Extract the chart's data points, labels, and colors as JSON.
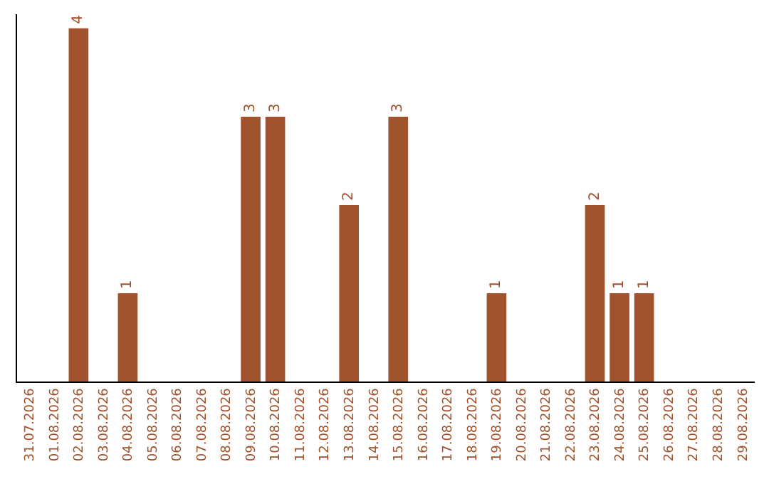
{
  "chart_data": {
    "type": "bar",
    "categories": [
      "31.07.2026",
      "01.08.2026",
      "02.08.2026",
      "03.08.2026",
      "04.08.2026",
      "05.08.2026",
      "06.08.2026",
      "07.08.2026",
      "08.08.2026",
      "09.08.2026",
      "10.08.2026",
      "11.08.2026",
      "12.08.2026",
      "13.08.2026",
      "14.08.2026",
      "15.08.2026",
      "16.08.2026",
      "17.08.2026",
      "18.08.2026",
      "19.08.2026",
      "20.08.2026",
      "21.08.2026",
      "22.08.2026",
      "23.08.2026",
      "24.08.2026",
      "25.08.2026",
      "26.08.2026",
      "27.08.2026",
      "28.08.2026",
      "29.08.2026"
    ],
    "values": [
      0,
      0,
      4,
      0,
      1,
      0,
      0,
      0,
      0,
      3,
      3,
      0,
      0,
      2,
      0,
      3,
      0,
      0,
      0,
      1,
      0,
      0,
      0,
      2,
      1,
      1,
      0,
      0,
      0,
      0
    ],
    "value_labels": [
      null,
      null,
      "4",
      null,
      "1",
      null,
      null,
      null,
      null,
      "3",
      "3",
      null,
      null,
      "2",
      null,
      "3",
      null,
      null,
      null,
      "1",
      null,
      null,
      null,
      "2",
      "1",
      "1",
      null,
      null,
      null,
      null
    ],
    "color": "#a0522d"
  }
}
